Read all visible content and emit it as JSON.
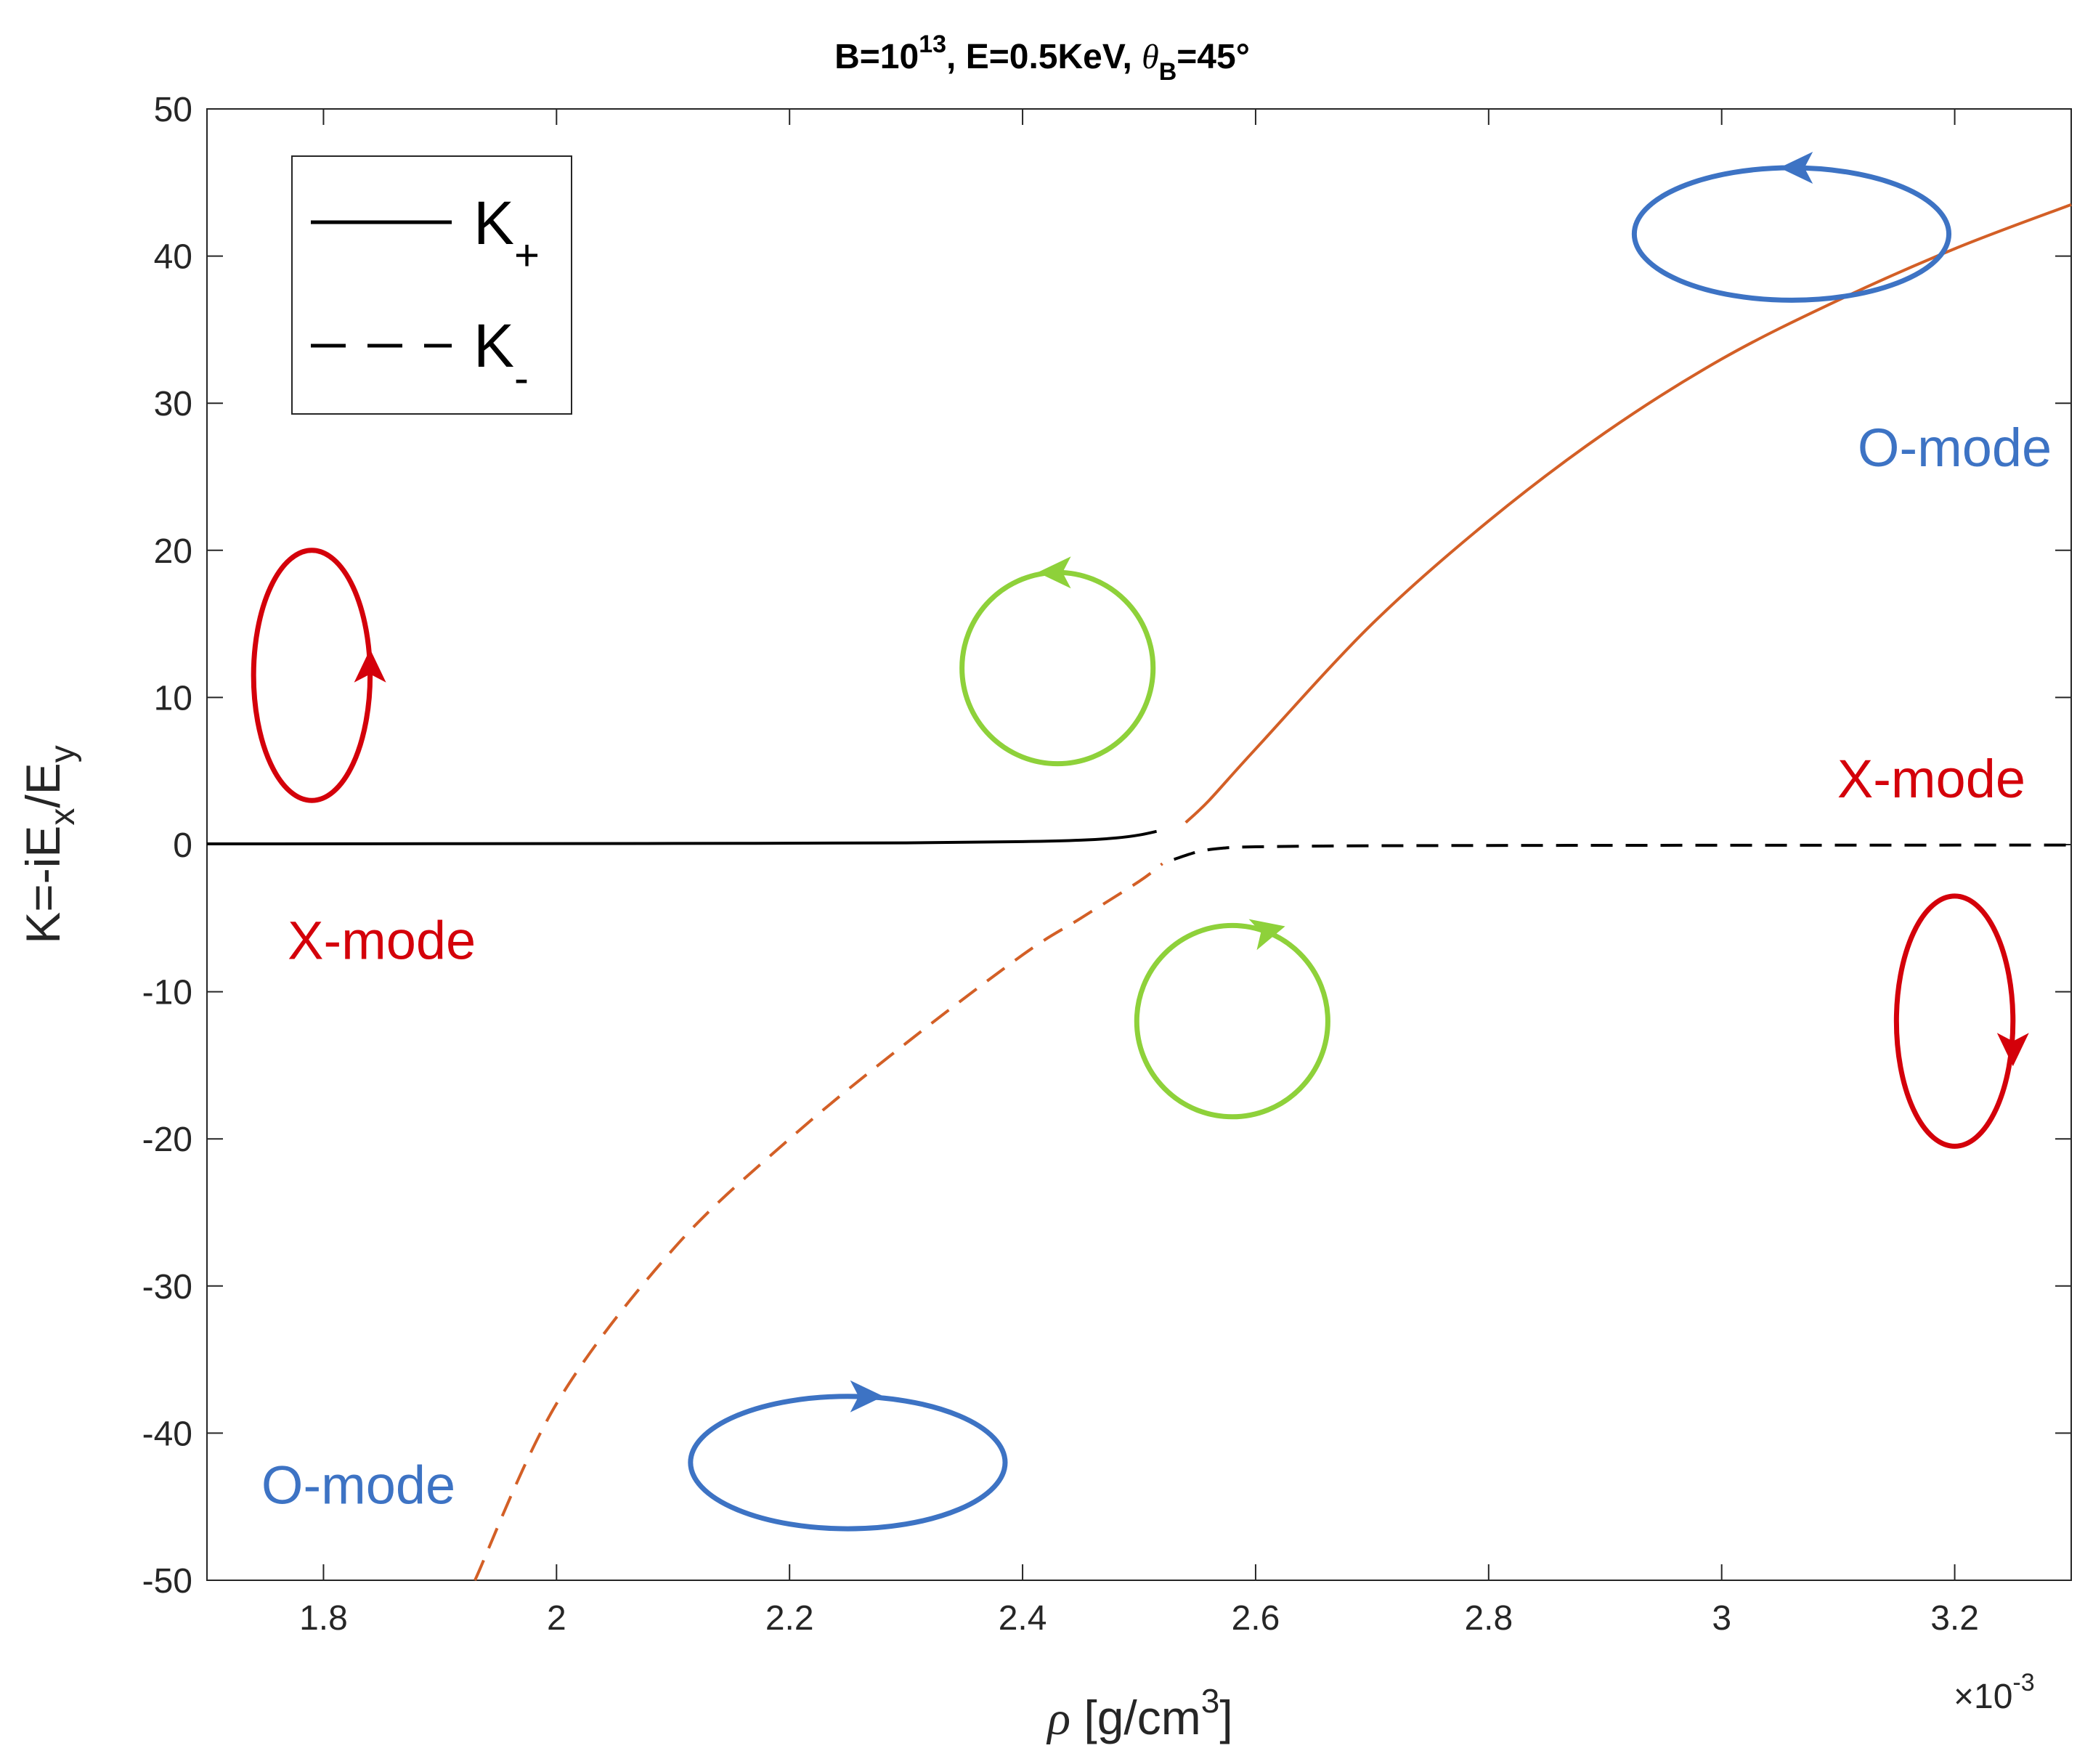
{
  "chart_data": {
    "type": "line",
    "title": {
      "prefix": "B=10",
      "b_exponent": "13",
      "middle": ", E=0.5KeV, ",
      "theta": "θ",
      "theta_sub": "B",
      "suffix": "=45°"
    },
    "xlabel": {
      "rho": "ρ",
      "text": " [g/cm",
      "exponent": "3",
      "close": "]"
    },
    "ylabel": {
      "main": "K=-iE",
      "sub1": "x",
      "mid": "/E",
      "sub2": "y"
    },
    "x_multiplier": {
      "times": "×10",
      "exponent": "-3"
    },
    "xlim": [
      1.7,
      3.3
    ],
    "ylim": [
      -50,
      50
    ],
    "x_ticks": [
      1.8,
      2.0,
      2.2,
      2.4,
      2.6,
      2.8,
      3.0,
      3.2
    ],
    "x_tick_labels": [
      "1.8",
      "2",
      "2.2",
      "2.4",
      "2.6",
      "2.8",
      "3",
      "3.2"
    ],
    "y_ticks": [
      -50,
      -40,
      -30,
      -20,
      -10,
      0,
      10,
      20,
      30,
      40,
      50
    ],
    "y_tick_labels": [
      "-50",
      "-40",
      "-30",
      "-20",
      "-10",
      "0",
      "10",
      "20",
      "30",
      "40",
      "50"
    ],
    "legend": {
      "location": "top-left",
      "entries": [
        {
          "base": "K",
          "sub": "+",
          "style": "solid"
        },
        {
          "base": "K",
          "sub": "-",
          "style": "dashed"
        }
      ]
    },
    "series": [
      {
        "name": "K+ (X-mode branch)",
        "color": "#000000",
        "style": "solid",
        "x": [
          1.7,
          1.9,
          2.1,
          2.3,
          2.4,
          2.45,
          2.48,
          2.5,
          2.515
        ],
        "y": [
          0.05,
          0.06,
          0.08,
          0.12,
          0.2,
          0.3,
          0.45,
          0.65,
          0.9
        ]
      },
      {
        "name": "K+ (O-mode branch)",
        "color": "#d35f26",
        "style": "solid",
        "x": [
          2.54,
          2.56,
          2.6,
          2.7,
          2.8,
          2.9,
          3.0,
          3.1,
          3.2,
          3.3
        ],
        "y": [
          1.5,
          3.0,
          6.5,
          15.0,
          22.0,
          28.0,
          33.0,
          37.0,
          40.5,
          43.5
        ]
      },
      {
        "name": "K- (O-mode branch)",
        "color": "#d35f26",
        "style": "dashed",
        "x": [
          1.93,
          2.0,
          2.1,
          2.2,
          2.3,
          2.4,
          2.45,
          2.5,
          2.52
        ],
        "y": [
          -50.0,
          -38.0,
          -27.5,
          -20.0,
          -13.5,
          -7.5,
          -5.0,
          -2.5,
          -1.3
        ]
      },
      {
        "name": "K- (X-mode branch)",
        "color": "#000000",
        "style": "dashed",
        "x": [
          2.53,
          2.55,
          2.57,
          2.6,
          2.7,
          2.9,
          3.1,
          3.3
        ],
        "y": [
          -1.0,
          -0.5,
          -0.25,
          -0.15,
          -0.08,
          -0.05,
          -0.04,
          -0.03
        ]
      }
    ],
    "annotations": [
      {
        "text": "O-mode",
        "x": 3.2,
        "y": 27,
        "color": "#3d73c4"
      },
      {
        "text": "X-mode",
        "x": 3.18,
        "y": 4.5,
        "color": "#d4000a"
      },
      {
        "text": "X-mode",
        "x": 1.85,
        "y": -6.5,
        "color": "#d4000a"
      },
      {
        "text": "O-mode",
        "x": 1.83,
        "y": -43.5,
        "color": "#3d73c4"
      }
    ],
    "polarization_ellipses": [
      {
        "label": "blue-upper",
        "color": "#3d73c4",
        "cx": 3.06,
        "cy": 41.5,
        "rx": 0.135,
        "ry": 4.5,
        "rotation": "counterclockwise"
      },
      {
        "label": "red-left",
        "color": "#d4000a",
        "cx": 1.79,
        "cy": 11.5,
        "rx": 0.05,
        "ry": 8.5,
        "rotation": "counterclockwise"
      },
      {
        "label": "green-upper",
        "color": "#8ed13a",
        "cx": 2.43,
        "cy": 12,
        "rx": 0.082,
        "ry": 6.5,
        "rotation": "counterclockwise"
      },
      {
        "label": "green-lower",
        "color": "#8ed13a",
        "cx": 2.58,
        "cy": -12,
        "rx": 0.082,
        "ry": 6.5,
        "rotation": "clockwise"
      },
      {
        "label": "red-right",
        "color": "#d4000a",
        "cx": 3.2,
        "cy": -12,
        "rx": 0.05,
        "ry": 8.5,
        "rotation": "clockwise"
      },
      {
        "label": "blue-lower",
        "color": "#3d73c4",
        "cx": 2.25,
        "cy": -42,
        "rx": 0.135,
        "ry": 4.5,
        "rotation": "clockwise"
      }
    ]
  }
}
